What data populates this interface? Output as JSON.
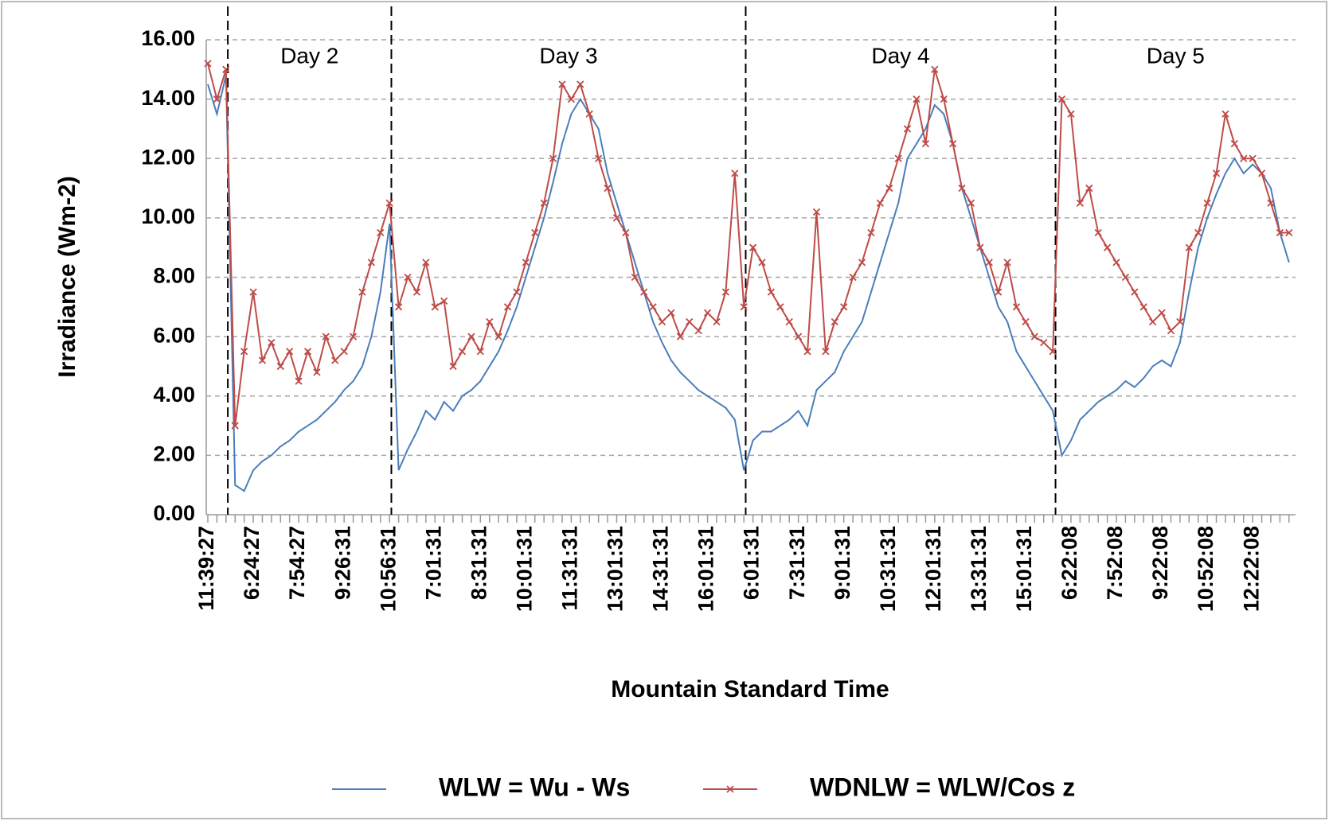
{
  "chart_data": {
    "type": "line",
    "y_label": "Irradiance (Wm-2)",
    "x_label": "Mountain Standard Time",
    "ylim": [
      0,
      16
    ],
    "yticks": [
      {
        "value": 0,
        "label": "0.00"
      },
      {
        "value": 2,
        "label": "2.00"
      },
      {
        "value": 4,
        "label": "4.00"
      },
      {
        "value": 6,
        "label": "6.00"
      },
      {
        "value": 8,
        "label": "8.00"
      },
      {
        "value": 10,
        "label": "10.00"
      },
      {
        "value": 12,
        "label": "12.00"
      },
      {
        "value": 14,
        "label": "14.00"
      },
      {
        "value": 16,
        "label": "16.00"
      }
    ],
    "grid": true,
    "categories": [
      "11:39:27",
      null,
      null,
      null,
      null,
      "6:24:27",
      null,
      null,
      null,
      null,
      "7:54:27",
      null,
      null,
      null,
      null,
      "9:26:31",
      null,
      null,
      null,
      null,
      "10:56:31",
      null,
      null,
      null,
      null,
      "7:01:31",
      null,
      null,
      null,
      null,
      "8:31:31",
      null,
      null,
      null,
      null,
      "10:01:31",
      null,
      null,
      null,
      null,
      "11:31:31",
      null,
      null,
      null,
      null,
      "13:01:31",
      null,
      null,
      null,
      null,
      "14:31:31",
      null,
      null,
      null,
      null,
      "16:01:31",
      null,
      null,
      null,
      null,
      "6:01:31",
      null,
      null,
      null,
      null,
      "7:31:31",
      null,
      null,
      null,
      null,
      "9:01:31",
      null,
      null,
      null,
      null,
      "10:31:31",
      null,
      null,
      null,
      null,
      "12:01:31",
      null,
      null,
      null,
      null,
      "13:31:31",
      null,
      null,
      null,
      null,
      "15:01:31",
      null,
      null,
      null,
      null,
      "6:22:08",
      null,
      null,
      null,
      null,
      "7:52:08",
      null,
      null,
      null,
      null,
      "9:22:08",
      null,
      null,
      null,
      null,
      "10:52:08",
      null,
      null,
      null,
      null,
      "12:22:08",
      null,
      null,
      null,
      null
    ],
    "annotations": [
      {
        "text": "Day 2",
        "x": 2.2
      },
      {
        "text": "Day 3",
        "x": 20.2
      },
      {
        "text": "Day 4",
        "x": 59.2
      },
      {
        "text": "Day 5",
        "x": 93.3
      }
    ],
    "series": [
      {
        "name": "WLW = Wu - Ws",
        "color": "#4a7ebb",
        "markers": false,
        "values": [
          14.5,
          13.5,
          14.8,
          1.0,
          0.8,
          1.5,
          1.8,
          2.0,
          2.3,
          2.5,
          2.8,
          3.0,
          3.2,
          3.5,
          3.8,
          4.2,
          4.5,
          5.0,
          6.0,
          7.5,
          9.8,
          1.5,
          2.2,
          2.8,
          3.5,
          3.2,
          3.8,
          3.5,
          4.0,
          4.2,
          4.5,
          5.0,
          5.5,
          6.2,
          7.0,
          8.0,
          9.0,
          10.0,
          11.2,
          12.5,
          13.5,
          14.0,
          13.5,
          13.0,
          11.5,
          10.5,
          9.5,
          8.5,
          7.5,
          6.5,
          5.8,
          5.2,
          4.8,
          4.5,
          4.2,
          4.0,
          3.8,
          3.6,
          3.2,
          1.5,
          2.5,
          2.8,
          2.8,
          3.0,
          3.2,
          3.5,
          3.0,
          4.2,
          4.5,
          4.8,
          5.5,
          6.0,
          6.5,
          7.5,
          8.5,
          9.5,
          10.5,
          12.0,
          12.5,
          13.0,
          13.8,
          13.5,
          12.5,
          11.0,
          10.0,
          9.0,
          8.0,
          7.0,
          6.5,
          5.5,
          5.0,
          4.5,
          4.0,
          3.5,
          2.0,
          2.5,
          3.2,
          3.5,
          3.8,
          4.0,
          4.2,
          4.5,
          4.3,
          4.6,
          5.0,
          5.2,
          5.0,
          5.8,
          7.5,
          9.0,
          10.0,
          10.8,
          11.5,
          12.0,
          11.5,
          11.8,
          11.5,
          11.0,
          9.5,
          8.5
        ]
      },
      {
        "name": "WDNLW = WLW/Cos z",
        "color": "#be4b48",
        "markers": true,
        "values": [
          15.2,
          14.0,
          15.0,
          3.0,
          5.5,
          7.5,
          5.2,
          5.8,
          5.0,
          5.5,
          4.5,
          5.5,
          4.8,
          6.0,
          5.2,
          5.5,
          6.0,
          7.5,
          8.5,
          9.5,
          10.5,
          7.0,
          8.0,
          7.5,
          8.5,
          7.0,
          7.2,
          5.0,
          5.5,
          6.0,
          5.5,
          6.5,
          6.0,
          7.0,
          7.5,
          8.5,
          9.5,
          10.5,
          12.0,
          14.5,
          14.0,
          14.5,
          13.5,
          12.0,
          11.0,
          10.0,
          9.5,
          8.0,
          7.5,
          7.0,
          6.5,
          6.8,
          6.0,
          6.5,
          6.2,
          6.8,
          6.5,
          7.5,
          11.5,
          7.0,
          9.0,
          8.5,
          7.5,
          7.0,
          6.5,
          6.0,
          5.5,
          10.2,
          5.5,
          6.5,
          7.0,
          8.0,
          8.5,
          9.5,
          10.5,
          11.0,
          12.0,
          13.0,
          14.0,
          12.5,
          15.0,
          14.0,
          12.5,
          11.0,
          10.5,
          9.0,
          8.5,
          7.5,
          8.5,
          7.0,
          6.5,
          6.0,
          5.8,
          5.5,
          14.0,
          13.5,
          10.5,
          11.0,
          9.5,
          9.0,
          8.5,
          8.0,
          7.5,
          7.0,
          6.5,
          6.8,
          6.2,
          6.5,
          9.0,
          9.5,
          10.5,
          11.5,
          13.5,
          12.5,
          12.0,
          12.0,
          11.5,
          10.5,
          9.5,
          9.5
        ]
      }
    ]
  }
}
